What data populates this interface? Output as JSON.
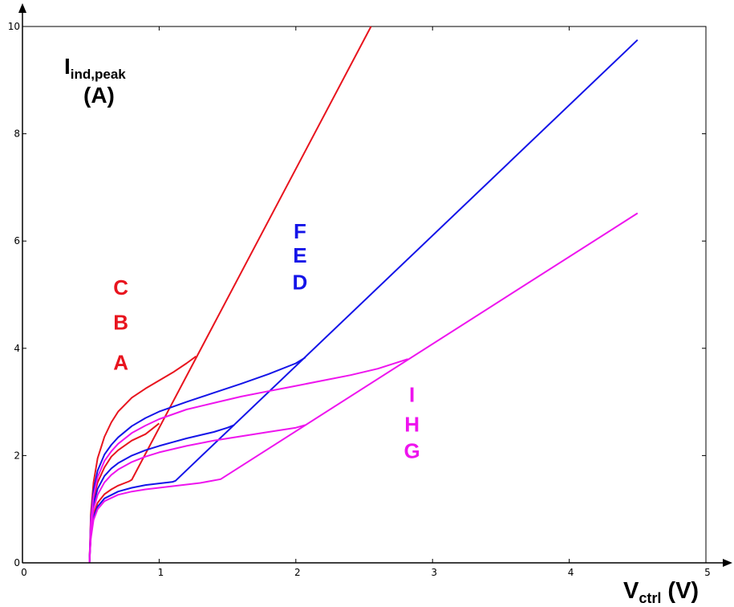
{
  "chart_data": {
    "type": "line",
    "xlim": [
      0,
      5
    ],
    "ylim": [
      0,
      10
    ],
    "xticks": [
      "0",
      "1",
      "2",
      "3",
      "4",
      "5"
    ],
    "yticks": [
      "0",
      "2",
      "4",
      "6",
      "8",
      "10"
    ],
    "grid": false,
    "ylabel": {
      "main": "I",
      "sub": "ind,peak",
      "unit": "(A)"
    },
    "xlabel": {
      "main": "V",
      "sub": "ctrl",
      "unit": " (V)"
    },
    "colors": {
      "red": "#e8141e",
      "blue": "#1414e8",
      "magenta": "#ee14ee"
    },
    "annotations": [
      {
        "text": "C",
        "color": "red",
        "x": 0.72,
        "y": 5.0
      },
      {
        "text": "B",
        "color": "red",
        "x": 0.72,
        "y": 4.35
      },
      {
        "text": "A",
        "color": "red",
        "x": 0.72,
        "y": 3.6
      },
      {
        "text": "F",
        "color": "blue",
        "x": 2.03,
        "y": 6.05
      },
      {
        "text": "E",
        "color": "blue",
        "x": 2.03,
        "y": 5.6
      },
      {
        "text": "D",
        "color": "blue",
        "x": 2.03,
        "y": 5.1
      },
      {
        "text": "I",
        "color": "magenta",
        "x": 2.85,
        "y": 3.0
      },
      {
        "text": "H",
        "color": "magenta",
        "x": 2.85,
        "y": 2.45
      },
      {
        "text": "G",
        "color": "magenta",
        "x": 2.85,
        "y": 1.95
      }
    ],
    "series": [
      {
        "name": "A",
        "color": "red",
        "x": [
          0.49,
          0.5,
          0.52,
          0.55,
          0.6,
          0.65,
          0.7,
          0.78,
          0.8,
          2.55
        ],
        "y": [
          0,
          0.5,
          0.9,
          1.12,
          1.28,
          1.37,
          1.44,
          1.52,
          1.55,
          10.0
        ]
      },
      {
        "name": "B",
        "color": "red",
        "x": [
          0.49,
          0.5,
          0.52,
          0.55,
          0.6,
          0.65,
          0.7,
          0.8,
          0.9,
          0.96,
          1.0
        ],
        "y": [
          0,
          0.7,
          1.2,
          1.5,
          1.78,
          1.98,
          2.1,
          2.28,
          2.4,
          2.52,
          2.6
        ]
      },
      {
        "name": "C",
        "color": "red",
        "x": [
          0.49,
          0.5,
          0.52,
          0.55,
          0.6,
          0.65,
          0.7,
          0.8,
          0.9,
          1.0,
          1.1,
          1.2,
          1.27
        ],
        "y": [
          0,
          0.9,
          1.5,
          1.95,
          2.35,
          2.62,
          2.82,
          3.08,
          3.25,
          3.4,
          3.55,
          3.72,
          3.85
        ]
      },
      {
        "name": "D",
        "color": "blue",
        "x": [
          0.49,
          0.5,
          0.52,
          0.55,
          0.6,
          0.7,
          0.8,
          0.9,
          1.0,
          1.1,
          1.12,
          4.5
        ],
        "y": [
          0,
          0.5,
          0.85,
          1.05,
          1.2,
          1.33,
          1.4,
          1.45,
          1.48,
          1.51,
          1.53,
          9.75
        ]
      },
      {
        "name": "E",
        "color": "blue",
        "x": [
          0.49,
          0.5,
          0.52,
          0.55,
          0.6,
          0.65,
          0.7,
          0.8,
          0.9,
          1.0,
          1.1,
          1.2,
          1.3,
          1.4,
          1.5,
          1.55
        ],
        "y": [
          0,
          0.65,
          1.1,
          1.38,
          1.62,
          1.76,
          1.86,
          2.0,
          2.1,
          2.18,
          2.25,
          2.32,
          2.38,
          2.44,
          2.52,
          2.57
        ]
      },
      {
        "name": "F",
        "color": "blue",
        "x": [
          0.49,
          0.5,
          0.52,
          0.55,
          0.6,
          0.65,
          0.7,
          0.8,
          0.9,
          1.0,
          1.2,
          1.4,
          1.6,
          1.8,
          2.0,
          2.07
        ],
        "y": [
          0,
          0.8,
          1.35,
          1.72,
          2.02,
          2.2,
          2.34,
          2.55,
          2.7,
          2.82,
          3.0,
          3.17,
          3.34,
          3.52,
          3.72,
          3.83
        ]
      },
      {
        "name": "G",
        "color": "magenta",
        "x": [
          0.49,
          0.5,
          0.52,
          0.55,
          0.6,
          0.7,
          0.8,
          0.9,
          1.0,
          1.1,
          1.2,
          1.3,
          1.45,
          4.5
        ],
        "y": [
          0,
          0.45,
          0.8,
          1.0,
          1.15,
          1.27,
          1.33,
          1.37,
          1.4,
          1.43,
          1.46,
          1.49,
          1.56,
          6.52
        ]
      },
      {
        "name": "H",
        "color": "magenta",
        "x": [
          0.49,
          0.5,
          0.52,
          0.55,
          0.6,
          0.65,
          0.7,
          0.8,
          0.9,
          1.0,
          1.2,
          1.4,
          1.6,
          1.8,
          2.0,
          2.07
        ],
        "y": [
          0,
          0.6,
          1.0,
          1.27,
          1.5,
          1.64,
          1.74,
          1.88,
          1.98,
          2.06,
          2.18,
          2.28,
          2.36,
          2.44,
          2.52,
          2.57
        ]
      },
      {
        "name": "I",
        "color": "magenta",
        "x": [
          0.49,
          0.5,
          0.52,
          0.55,
          0.6,
          0.65,
          0.7,
          0.8,
          0.9,
          1.0,
          1.2,
          1.4,
          1.6,
          1.8,
          2.0,
          2.2,
          2.4,
          2.6,
          2.82
        ],
        "y": [
          0,
          0.75,
          1.25,
          1.6,
          1.9,
          2.08,
          2.22,
          2.42,
          2.56,
          2.68,
          2.86,
          2.98,
          3.1,
          3.2,
          3.3,
          3.4,
          3.5,
          3.62,
          3.8
        ]
      }
    ]
  }
}
